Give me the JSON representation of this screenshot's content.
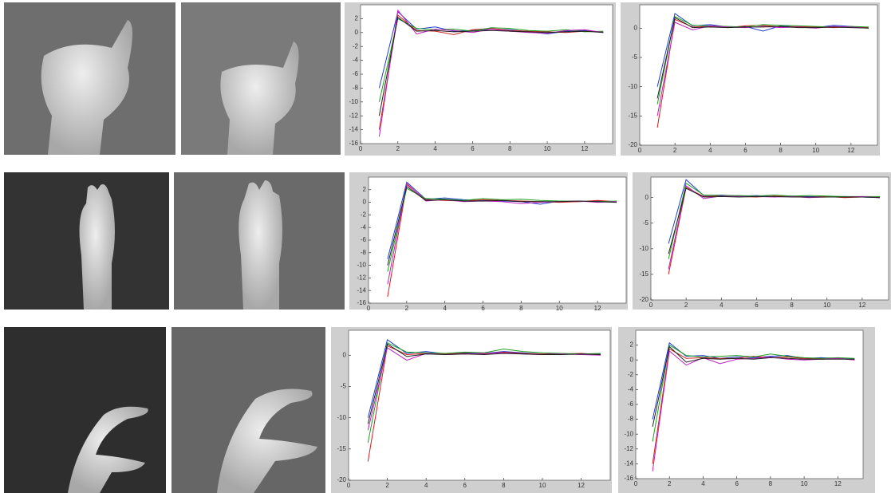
{
  "chart_data": [
    {
      "type": "line",
      "x": [
        1,
        2,
        3,
        4,
        5,
        6,
        7,
        8,
        9,
        10,
        11,
        12,
        13
      ],
      "xlim": [
        0,
        13.5
      ],
      "xticks": [
        0,
        2,
        4,
        6,
        8,
        10,
        12
      ],
      "ylim": [
        -16,
        4
      ],
      "yticks": [
        -16,
        -14,
        -12,
        -10,
        -8,
        -6,
        -4,
        -2,
        0,
        2
      ],
      "series": [
        {
          "color": "#1f3fd0",
          "values": [
            -8,
            3,
            0.5,
            0.8,
            0.2,
            0.3,
            0.5,
            0.4,
            0.1,
            -0.2,
            0.2,
            0.3,
            0
          ]
        },
        {
          "color": "#d02020",
          "values": [
            -14,
            2.5,
            0.3,
            0.2,
            -0.3,
            0.4,
            0.6,
            0.3,
            0.2,
            0.1,
            0,
            0.2,
            0.1
          ]
        },
        {
          "color": "#20a020",
          "values": [
            -10,
            2,
            0.6,
            0.4,
            0.5,
            0.2,
            0.7,
            0.6,
            0.3,
            0.2,
            0.4,
            0.1,
            0.2
          ]
        },
        {
          "color": "#c020c0",
          "values": [
            -15,
            3.2,
            -0.2,
            0.5,
            0.3,
            0,
            0.5,
            0.2,
            0,
            -0.1,
            0.3,
            0.4,
            0
          ]
        },
        {
          "color": "#202020",
          "values": [
            -12,
            2.2,
            0.2,
            0.3,
            0.1,
            0.2,
            0.3,
            0.2,
            0.1,
            0,
            0.1,
            0.2,
            0
          ]
        }
      ]
    },
    {
      "type": "line",
      "x": [
        1,
        2,
        3,
        4,
        5,
        6,
        7,
        8,
        9,
        10,
        11,
        12,
        13
      ],
      "xlim": [
        0,
        13.5
      ],
      "xticks": [
        0,
        2,
        4,
        6,
        8,
        10,
        12
      ],
      "ylim": [
        -20,
        4
      ],
      "yticks": [
        -20,
        -15,
        -10,
        -5,
        0
      ],
      "series": [
        {
          "color": "#1f3fd0",
          "values": [
            -10,
            2.5,
            0.4,
            0.6,
            0.2,
            0.3,
            -0.5,
            0.4,
            0.2,
            0.1,
            0.5,
            0.3,
            0
          ]
        },
        {
          "color": "#d02020",
          "values": [
            -17,
            1.5,
            0.2,
            0.3,
            0.1,
            0.4,
            0.5,
            0.2,
            0.3,
            0.2,
            0.1,
            0.2,
            0.1
          ]
        },
        {
          "color": "#20a020",
          "values": [
            -13,
            2,
            0.5,
            0.4,
            0.3,
            0.2,
            0.6,
            0.5,
            0.4,
            0.3,
            0.2,
            0.3,
            0.2
          ]
        },
        {
          "color": "#c020c0",
          "values": [
            -15,
            1,
            -0.3,
            0.4,
            0.2,
            0.1,
            0.3,
            0.1,
            0.2,
            0,
            0.3,
            0.2,
            0
          ]
        },
        {
          "color": "#202020",
          "values": [
            -12,
            1.8,
            0.1,
            0.2,
            0.1,
            0.2,
            0.2,
            0.3,
            0.1,
            0.1,
            0.2,
            0.1,
            0
          ]
        }
      ]
    },
    {
      "type": "line",
      "x": [
        1,
        2,
        3,
        4,
        5,
        6,
        7,
        8,
        9,
        10,
        11,
        12,
        13
      ],
      "xlim": [
        0,
        13.5
      ],
      "xticks": [
        0,
        2,
        4,
        6,
        8,
        10,
        12
      ],
      "ylim": [
        -16,
        4
      ],
      "yticks": [
        -16,
        -14,
        -12,
        -10,
        -8,
        -6,
        -4,
        -2,
        0,
        2
      ],
      "series": [
        {
          "color": "#1f3fd0",
          "values": [
            -9,
            3.2,
            0.5,
            0.7,
            0.4,
            0.3,
            0.2,
            0.1,
            -0.3,
            0.2,
            0.1,
            0.2,
            0
          ]
        },
        {
          "color": "#d02020",
          "values": [
            -15,
            2.8,
            0.4,
            0.3,
            0.2,
            0.4,
            0.3,
            0.2,
            0.1,
            0,
            0.1,
            0.3,
            0.1
          ]
        },
        {
          "color": "#20a020",
          "values": [
            -11,
            2.2,
            0.6,
            0.5,
            0.3,
            0.6,
            0.4,
            0.5,
            0.3,
            0.2,
            0.2,
            0.1,
            0.2
          ]
        },
        {
          "color": "#c020c0",
          "values": [
            -13,
            3,
            0.2,
            0.4,
            0.1,
            0.2,
            0.1,
            -0.2,
            0,
            0.1,
            0.2,
            0,
            0.1
          ]
        },
        {
          "color": "#202020",
          "values": [
            -10,
            2.5,
            0.3,
            0.4,
            0.2,
            0.2,
            0.3,
            0.1,
            0.1,
            0.1,
            0.2,
            0.1,
            0
          ]
        }
      ]
    },
    {
      "type": "line",
      "x": [
        1,
        2,
        3,
        4,
        5,
        6,
        7,
        8,
        9,
        10,
        11,
        12,
        13
      ],
      "xlim": [
        0,
        13.5
      ],
      "xticks": [
        0,
        2,
        4,
        6,
        8,
        10,
        12
      ],
      "ylim": [
        -20,
        4
      ],
      "yticks": [
        -20,
        -15,
        -10,
        -5,
        0
      ],
      "series": [
        {
          "color": "#1f3fd0",
          "values": [
            -9,
            3.5,
            0.4,
            0.5,
            0.3,
            0.4,
            0.2,
            0.3,
            0.2,
            0.1,
            0.2,
            0.1,
            0
          ]
        },
        {
          "color": "#d02020",
          "values": [
            -15,
            2,
            0.2,
            0.3,
            0.2,
            0.1,
            0.3,
            0.2,
            0.1,
            0.2,
            0,
            0.1,
            0.1
          ]
        },
        {
          "color": "#20a020",
          "values": [
            -12,
            2.8,
            0.5,
            0.4,
            0.4,
            0.3,
            0.5,
            0.3,
            0.4,
            0.3,
            0.2,
            0.2,
            0.2
          ]
        },
        {
          "color": "#c020c0",
          "values": [
            -14,
            2.3,
            -0.2,
            0.3,
            0.2,
            0.2,
            0.1,
            0.2,
            0,
            0.1,
            0.1,
            0.2,
            0
          ]
        },
        {
          "color": "#202020",
          "values": [
            -11,
            1.8,
            0.1,
            0.2,
            0.1,
            0.2,
            0.2,
            0.1,
            0.1,
            0.1,
            0.1,
            0.1,
            0
          ]
        }
      ]
    },
    {
      "type": "line",
      "x": [
        1,
        2,
        3,
        4,
        5,
        6,
        7,
        8,
        9,
        10,
        11,
        12,
        13
      ],
      "xlim": [
        0,
        13.5
      ],
      "xticks": [
        0,
        2,
        4,
        6,
        8,
        10,
        12
      ],
      "ylim": [
        -20,
        4
      ],
      "yticks": [
        -20,
        -15,
        -10,
        -5,
        0
      ],
      "series": [
        {
          "color": "#1f3fd0",
          "values": [
            -10,
            2.5,
            0.3,
            0.6,
            0.2,
            0.4,
            0.3,
            0.6,
            0.4,
            0.2,
            0.3,
            0.1,
            0.2
          ]
        },
        {
          "color": "#d02020",
          "values": [
            -17,
            1.5,
            0.1,
            0.3,
            0.2,
            0.3,
            0.2,
            0.5,
            0.3,
            0.2,
            0.2,
            0.3,
            0.1
          ]
        },
        {
          "color": "#20a020",
          "values": [
            -14,
            2,
            0.5,
            0.4,
            0.3,
            0.5,
            0.4,
            1,
            0.6,
            0.4,
            0.3,
            0.2,
            0.3
          ]
        },
        {
          "color": "#c020c0",
          "values": [
            -12,
            1.2,
            -0.8,
            0.3,
            0.1,
            0.2,
            0.3,
            0.4,
            0.2,
            0.1,
            0.2,
            0.1,
            0
          ]
        },
        {
          "color": "#202020",
          "values": [
            -11,
            1.8,
            -0.2,
            0.2,
            0.1,
            0.2,
            0.1,
            0.3,
            0.2,
            0.1,
            0.1,
            0.2,
            0.1
          ]
        }
      ]
    },
    {
      "type": "line",
      "x": [
        1,
        2,
        3,
        4,
        5,
        6,
        7,
        8,
        9,
        10,
        11,
        12,
        13
      ],
      "xlim": [
        0,
        13.5
      ],
      "xticks": [
        0,
        2,
        4,
        6,
        8,
        10,
        12
      ],
      "ylim": [
        -16,
        4
      ],
      "yticks": [
        -16,
        -14,
        -12,
        -10,
        -8,
        -6,
        -4,
        -2,
        0,
        2
      ],
      "series": [
        {
          "color": "#1f3fd0",
          "values": [
            -8,
            2.3,
            0.5,
            0.6,
            0.2,
            0.4,
            0.3,
            0.5,
            0.6,
            0.2,
            0.3,
            0.2,
            0.1
          ]
        },
        {
          "color": "#d02020",
          "values": [
            -14,
            1.5,
            0.2,
            0.3,
            0.2,
            0.2,
            0.5,
            0.3,
            0.4,
            0.2,
            0.1,
            0.2,
            0
          ]
        },
        {
          "color": "#20a020",
          "values": [
            -11,
            2,
            0.6,
            0.4,
            0.5,
            0.6,
            0.4,
            0.8,
            0.5,
            0.3,
            0.2,
            0.3,
            0.2
          ]
        },
        {
          "color": "#c020c0",
          "values": [
            -15,
            1.2,
            -0.7,
            0.3,
            -0.5,
            0.1,
            0.2,
            0.4,
            0.1,
            0,
            0.1,
            0.2,
            0
          ]
        },
        {
          "color": "#202020",
          "values": [
            -9,
            1.8,
            -0.3,
            0.2,
            0.1,
            0.2,
            0.1,
            0.3,
            0.2,
            0.1,
            0.1,
            0.1,
            0.1
          ]
        }
      ]
    }
  ]
}
